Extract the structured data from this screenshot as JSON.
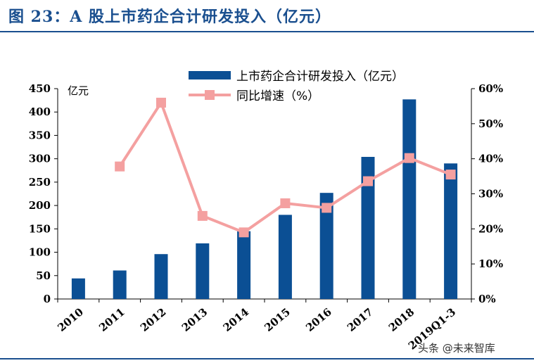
{
  "title": "图 23：A 股上市药企合计研发投入（亿元）",
  "watermark": "头条 @未来智库",
  "chart_data": {
    "type": "bar+line",
    "categories": [
      "2010",
      "2011",
      "2012",
      "2013",
      "2014",
      "2015",
      "2016",
      "2017",
      "2018",
      "2019Q1-3"
    ],
    "series": [
      {
        "name": "上市药企合计研发投入（亿元）",
        "type": "bar",
        "axis": "left",
        "color": "#0b4f94",
        "values": [
          44,
          61,
          96,
          119,
          145,
          180,
          227,
          304,
          427,
          290
        ]
      },
      {
        "name": "同比增速（%）",
        "type": "line",
        "axis": "right",
        "color": "#f4a0a0",
        "values": [
          null,
          0.378,
          0.56,
          0.237,
          0.19,
          0.273,
          0.26,
          0.336,
          0.402,
          0.355
        ]
      }
    ],
    "y_left": {
      "label": "亿元",
      "ticks": [
        "0",
        "50",
        "100",
        "150",
        "200",
        "250",
        "300",
        "350",
        "400",
        "450"
      ],
      "range": [
        0,
        450
      ]
    },
    "y_right": {
      "ticks": [
        "0%",
        "10%",
        "20%",
        "30%",
        "40%",
        "50%",
        "60%"
      ],
      "range": [
        0,
        0.6
      ]
    },
    "legend_position": "top-right",
    "grid": false
  }
}
